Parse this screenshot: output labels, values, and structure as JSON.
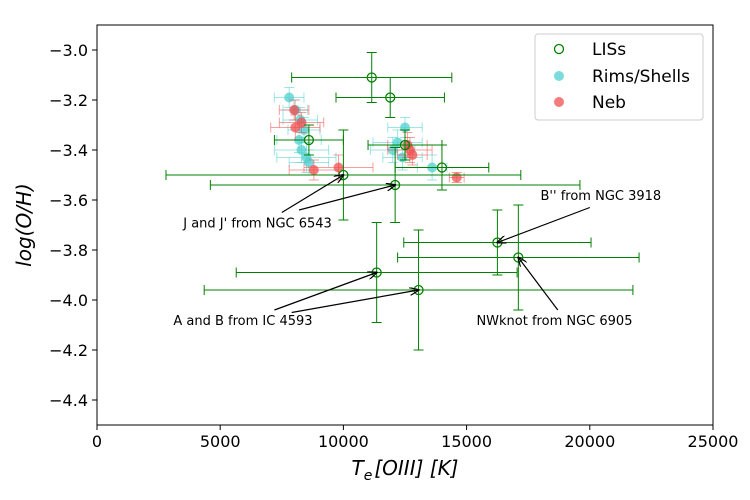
{
  "chart_data": {
    "type": "scatter",
    "xlabel_base": "T",
    "xlabel_sub": "e",
    "xlabel_rest": "[OIII] [K]",
    "ylabel": "log(O/H)",
    "xlim": [
      0,
      25000
    ],
    "ylim": [
      -4.5,
      -2.9
    ],
    "xticks": [
      0,
      5000,
      10000,
      15000,
      20000,
      25000
    ],
    "yticks": [
      -3.0,
      -3.2,
      -3.4,
      -3.6,
      -3.8,
      -4.0,
      -4.2,
      -4.4
    ],
    "xtick_labels": [
      "0",
      "5000",
      "10000",
      "15000",
      "20000",
      "25000"
    ],
    "ytick_labels": [
      "−3.0",
      "−3.2",
      "−3.4",
      "−3.6",
      "−3.8",
      "−4.0",
      "−4.2",
      "−4.4"
    ],
    "legend": {
      "position": "top-right",
      "entries": [
        {
          "label": "LISs",
          "style": "open-circle",
          "color": "#008000"
        },
        {
          "label": "Rims/Shells",
          "style": "filled-circle",
          "color": "#4fd0d0"
        },
        {
          "label": "Neb",
          "style": "filled-circle",
          "color": "#f05050"
        }
      ]
    },
    "series": [
      {
        "name": "LISs",
        "color": "#008000",
        "points": [
          {
            "x": 11150,
            "y": -3.11,
            "xerr": 3250,
            "yerr": 0.1
          },
          {
            "x": 11900,
            "y": -3.19,
            "xerr": 2200,
            "yerr": 0.08
          },
          {
            "x": 8600,
            "y": -3.36,
            "xerr": 1400,
            "yerr": 0.06
          },
          {
            "x": 10000,
            "y": -3.5,
            "xerr": 7200,
            "yerr": 0.18
          },
          {
            "x": 12100,
            "y": -3.54,
            "xerr": 7500,
            "yerr": 0.15
          },
          {
            "x": 14000,
            "y": -3.47,
            "xerr": 1900,
            "yerr": 0.09
          },
          {
            "x": 12500,
            "y": -3.38,
            "xerr": 1500,
            "yerr": 0.06
          },
          {
            "x": 16250,
            "y": -3.77,
            "xerr": 3800,
            "yerr": 0.13
          },
          {
            "x": 17100,
            "y": -3.83,
            "xerr": 4900,
            "yerr": 0.21
          },
          {
            "x": 11350,
            "y": -3.89,
            "xerr": 5700,
            "yerr": 0.2
          },
          {
            "x": 13050,
            "y": -3.96,
            "xerr": 8700,
            "yerr": 0.24
          }
        ]
      },
      {
        "name": "Rims/Shells",
        "color": "#4fd0d0",
        "points": [
          {
            "x": 7800,
            "y": -3.19,
            "xerr": 600,
            "yerr": 0.04
          },
          {
            "x": 8050,
            "y": -3.24,
            "xerr": 500,
            "yerr": 0.04
          },
          {
            "x": 8250,
            "y": -3.28,
            "xerr": 700,
            "yerr": 0.05
          },
          {
            "x": 8400,
            "y": -3.32,
            "xerr": 650,
            "yerr": 0.05
          },
          {
            "x": 8200,
            "y": -3.36,
            "xerr": 900,
            "yerr": 0.05
          },
          {
            "x": 8300,
            "y": -3.4,
            "xerr": 1100,
            "yerr": 0.05
          },
          {
            "x": 8500,
            "y": -3.43,
            "xerr": 1200,
            "yerr": 0.06
          },
          {
            "x": 8600,
            "y": -3.45,
            "xerr": 800,
            "yerr": 0.05
          },
          {
            "x": 12500,
            "y": -3.31,
            "xerr": 700,
            "yerr": 0.04
          },
          {
            "x": 12200,
            "y": -3.37,
            "xerr": 1000,
            "yerr": 0.05
          },
          {
            "x": 12000,
            "y": -3.4,
            "xerr": 900,
            "yerr": 0.05
          },
          {
            "x": 12400,
            "y": -3.43,
            "xerr": 800,
            "yerr": 0.05
          },
          {
            "x": 13600,
            "y": -3.47,
            "xerr": 600,
            "yerr": 0.05
          }
        ]
      },
      {
        "name": "Neb",
        "color": "#f05050",
        "points": [
          {
            "x": 8000,
            "y": -3.24,
            "xerr": 600,
            "yerr": 0.04
          },
          {
            "x": 8050,
            "y": -3.31,
            "xerr": 1000,
            "yerr": 0.05
          },
          {
            "x": 8300,
            "y": -3.29,
            "xerr": 900,
            "yerr": 0.04
          },
          {
            "x": 9800,
            "y": -3.47,
            "xerr": 1400,
            "yerr": 0.05
          },
          {
            "x": 8800,
            "y": -3.48,
            "xerr": 1000,
            "yerr": 0.04
          },
          {
            "x": 12600,
            "y": -3.38,
            "xerr": 800,
            "yerr": 0.05
          },
          {
            "x": 12700,
            "y": -3.4,
            "xerr": 900,
            "yerr": 0.05
          },
          {
            "x": 12800,
            "y": -3.42,
            "xerr": 600,
            "yerr": 0.04
          },
          {
            "x": 14600,
            "y": -3.51,
            "xerr": 300,
            "yerr": 0.02
          }
        ]
      }
    ],
    "annotations": [
      {
        "text": "J and J' from NGC 6543",
        "text_x": 3500,
        "text_y": -3.71,
        "anchor": "start",
        "arrows": [
          {
            "from": [
              7500,
              -3.65
            ],
            "to": [
              10000,
              -3.5
            ]
          },
          {
            "from": [
              8200,
              -3.64
            ],
            "to": [
              12100,
              -3.54
            ]
          }
        ]
      },
      {
        "text": "A and B from IC 4593",
        "text_x": 3100,
        "text_y": -4.1,
        "anchor": "start",
        "arrows": [
          {
            "from": [
              7200,
              -4.04
            ],
            "to": [
              11350,
              -3.89
            ]
          },
          {
            "from": [
              7900,
              -4.05
            ],
            "to": [
              13050,
              -3.96
            ]
          }
        ]
      },
      {
        "text": "B'' from NGC 3918",
        "text_x": 18000,
        "text_y": -3.6,
        "anchor": "start",
        "arrows": [
          {
            "from": [
              20000,
              -3.63
            ],
            "to": [
              16250,
              -3.77
            ]
          }
        ]
      },
      {
        "text": "NWknot from NGC 6905",
        "text_x": 15400,
        "text_y": -4.1,
        "anchor": "start",
        "arrows": [
          {
            "from": [
              18700,
              -4.04
            ],
            "to": [
              17100,
              -3.83
            ]
          }
        ]
      }
    ]
  }
}
